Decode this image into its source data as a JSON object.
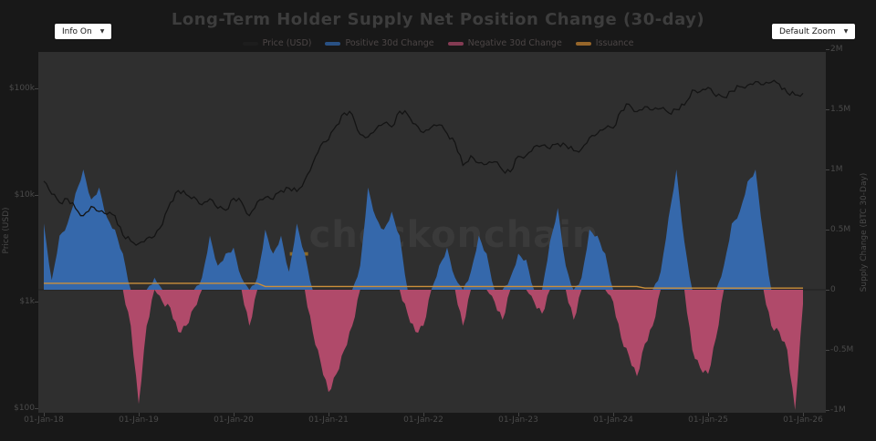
{
  "header": {
    "title": "Long-Term Holder Supply Net Position Change (30-day)",
    "info_dropdown": {
      "value": "Info On"
    },
    "zoom_dropdown": {
      "value": "Default Zoom"
    }
  },
  "legend": {
    "items": [
      {
        "id": "price",
        "label": "Price (USD)",
        "color": "#1f1f1f"
      },
      {
        "id": "positive",
        "label": "Positive 30d Change",
        "color": "#2f64a8"
      },
      {
        "id": "negative",
        "label": "Negative 30d Change",
        "color": "#a84767"
      },
      {
        "id": "issuance",
        "label": "Issuance",
        "color": "#c08030"
      }
    ]
  },
  "axes": {
    "left": {
      "title": "Price (USD)",
      "scale": "log",
      "ticks": [
        {
          "label": "$100k",
          "value": 100000
        },
        {
          "label": "$10k",
          "value": 10000
        },
        {
          "label": "$1k",
          "value": 1000
        },
        {
          "label": "$100",
          "value": 100
        }
      ]
    },
    "right": {
      "title": "Supply Change (BTC 30-Day)",
      "ticks": [
        {
          "label": "2M",
          "value": 2
        },
        {
          "label": "1.5M",
          "value": 1.5
        },
        {
          "label": "1M",
          "value": 1
        },
        {
          "label": "0.5M",
          "value": 0.5
        },
        {
          "label": "0",
          "value": 0
        },
        {
          "label": "-0.5M",
          "value": -0.5
        },
        {
          "label": "-1M",
          "value": -1
        }
      ]
    },
    "x": {
      "ticks": [
        "01-Jan-18",
        "01-Jan-19",
        "01-Jan-20",
        "01-Jan-21",
        "01-Jan-22",
        "01-Jan-23",
        "01-Jan-24",
        "01-Jan-25",
        "01-Jan-26"
      ]
    }
  },
  "watermark": {
    "prefix": "_",
    "text": "checkonchain"
  },
  "colors": {
    "page_bg": "#181818",
    "plot_bg": "#2f2f2f",
    "positive_fill": "#3568ab",
    "negative_fill": "#b04a6a",
    "price_line": "#141414",
    "issuance_line": "#cc8f3a",
    "zero_line": "#242424",
    "dim_text": "#4a4a4a"
  },
  "chart_data": {
    "type": "area",
    "subtype": "price line (log) + positive/negative 30d supply-change areas + issuance line",
    "x_start": "2018-01",
    "x_interval": "monthly",
    "points": 97,
    "x_tick_labels": [
      "01-Jan-18",
      "01-Jan-19",
      "01-Jan-20",
      "01-Jan-21",
      "01-Jan-22",
      "01-Jan-23",
      "01-Jan-24",
      "01-Jan-25",
      "01-Jan-26"
    ],
    "y_left": {
      "label": "Price (USD)",
      "scale": "log",
      "tick_labels": [
        "$100k",
        "$10k",
        "$1k",
        "$100"
      ],
      "range_usd": [
        55,
        280000
      ]
    },
    "y_right": {
      "label": "Supply Change (BTC 30-Day)",
      "unit": "million BTC",
      "tick_labels": [
        "2M",
        "1.5M",
        "1M",
        "0.5M",
        "0",
        "-0.5M",
        "-1M"
      ],
      "range_mbtc": [
        -1.04,
        2.0
      ]
    },
    "legend_position": "top-center",
    "grid": false,
    "series": [
      {
        "name": "Price (USD)",
        "type": "line",
        "axis": "left-log",
        "color": "#141414",
        "values_usd": [
          13500,
          10200,
          8500,
          9200,
          7500,
          6400,
          7800,
          7000,
          6600,
          6400,
          4200,
          3700,
          3500,
          3900,
          4100,
          5300,
          8500,
          11000,
          10100,
          9600,
          8100,
          9200,
          7500,
          7200,
          9300,
          8600,
          6400,
          8600,
          9500,
          9100,
          11000,
          11600,
          10800,
          13800,
          19700,
          29000,
          33000,
          45000,
          58800,
          57000,
          37000,
          35000,
          41500,
          47000,
          43500,
          61000,
          57000,
          46200,
          38500,
          43200,
          45500,
          37700,
          31000,
          19000,
          23300,
          20000,
          19400,
          20500,
          17100,
          16500,
          23100,
          23500,
          28400,
          29200,
          27200,
          30400,
          29300,
          26000,
          27000,
          34500,
          37700,
          42200,
          42500,
          61500,
          71000,
          60600,
          67500,
          62700,
          64600,
          59000,
          63300,
          69900,
          96400,
          93400,
          102000,
          84300,
          82500,
          94200,
          103800,
          107200,
          115800,
          108200,
          114000,
          110000,
          91000,
          87000,
          90000
        ]
      },
      {
        "name": "LTH Supply Net Position Change (30d)",
        "type": "area",
        "axis": "right",
        "positive_name": "Positive 30d Change",
        "negative_name": "Negative 30d Change",
        "positive_color": "#3568ab",
        "negative_color": "#b04a6a",
        "values_mbtc": [
          0.55,
          0.08,
          0.45,
          0.55,
          0.8,
          1.0,
          0.75,
          0.85,
          0.6,
          0.5,
          0.3,
          -0.3,
          -0.95,
          -0.3,
          0.1,
          -0.1,
          -0.15,
          -0.35,
          -0.3,
          -0.15,
          0.1,
          0.45,
          0.2,
          0.3,
          0.35,
          0.1,
          -0.3,
          0.1,
          0.5,
          0.3,
          0.45,
          0.15,
          0.55,
          0.3,
          -0.35,
          -0.6,
          -0.85,
          -0.7,
          -0.5,
          -0.3,
          0.2,
          0.85,
          0.6,
          0.5,
          0.65,
          0.45,
          -0.2,
          -0.35,
          -0.3,
          0.0,
          0.2,
          0.35,
          0.1,
          -0.3,
          0.15,
          0.45,
          0.3,
          -0.1,
          -0.25,
          0.1,
          0.3,
          0.25,
          -0.1,
          -0.2,
          0.4,
          0.68,
          0.2,
          -0.25,
          0.1,
          0.5,
          0.45,
          0.3,
          -0.1,
          -0.4,
          -0.55,
          -0.72,
          -0.45,
          -0.3,
          0.15,
          0.6,
          1.0,
          0.4,
          -0.5,
          -0.65,
          -0.7,
          -0.4,
          0.2,
          0.55,
          0.65,
          0.9,
          1.0,
          0.45,
          -0.3,
          -0.35,
          -0.5,
          -1.0,
          -0.12
        ]
      },
      {
        "name": "Issuance",
        "type": "line",
        "axis": "right",
        "color": "#cc8f3a",
        "values_mbtc": [
          0.054,
          0.054,
          0.054,
          0.054,
          0.054,
          0.054,
          0.054,
          0.054,
          0.054,
          0.054,
          0.054,
          0.054,
          0.054,
          0.054,
          0.054,
          0.054,
          0.054,
          0.054,
          0.054,
          0.054,
          0.054,
          0.054,
          0.054,
          0.054,
          0.054,
          0.054,
          0.054,
          0.054,
          0.027,
          0.027,
          0.027,
          0.027,
          0.027,
          0.027,
          0.027,
          0.027,
          0.027,
          0.027,
          0.027,
          0.027,
          0.027,
          0.027,
          0.027,
          0.027,
          0.027,
          0.027,
          0.027,
          0.027,
          0.027,
          0.027,
          0.027,
          0.027,
          0.027,
          0.027,
          0.027,
          0.027,
          0.027,
          0.027,
          0.027,
          0.027,
          0.027,
          0.027,
          0.027,
          0.027,
          0.027,
          0.027,
          0.027,
          0.027,
          0.027,
          0.027,
          0.027,
          0.027,
          0.027,
          0.027,
          0.027,
          0.027,
          0.0135,
          0.0135,
          0.0135,
          0.0135,
          0.0135,
          0.0135,
          0.0135,
          0.0135,
          0.0135,
          0.0135,
          0.0135,
          0.0135,
          0.0135,
          0.0135,
          0.0135,
          0.0135,
          0.0135,
          0.0135,
          0.0135,
          0.0135,
          0.0135
        ]
      }
    ]
  }
}
